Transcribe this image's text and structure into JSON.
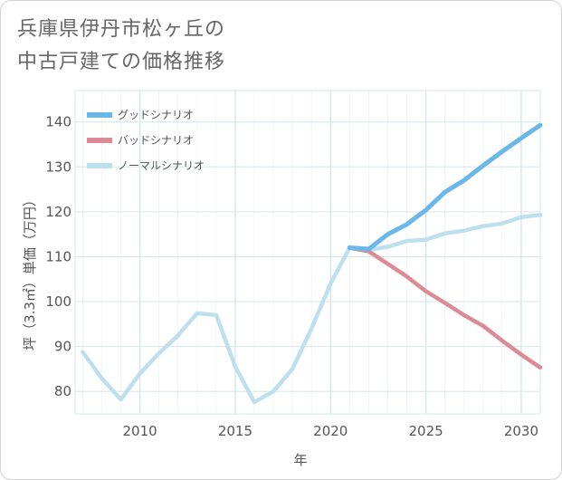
{
  "title_lines": [
    "兵庫県伊丹市松ヶ丘の",
    "中古戸建ての価格推移"
  ],
  "colors": {
    "good": "#6ab7ea",
    "bad": "#dc8a96",
    "normal": "#bde0ee",
    "grid": "#d6e6ee",
    "text": "#555555"
  },
  "chart_data": {
    "type": "line",
    "title": "兵庫県伊丹市松ヶ丘の中古戸建ての価格推移",
    "xlabel": "年",
    "ylabel": "坪（3.3㎡）単価（万円）",
    "xlim": [
      2006.6,
      2031
    ],
    "ylim": [
      75,
      147
    ],
    "xticks": [
      2010,
      2015,
      2020,
      2025,
      2030
    ],
    "yticks": [
      80,
      90,
      100,
      110,
      120,
      130,
      140
    ],
    "grid": true,
    "legend_position": "top-left",
    "series": [
      {
        "name": "グッドシナリオ",
        "key": "good",
        "x": [
          2021,
          2022,
          2023,
          2024,
          2025,
          2026,
          2027,
          2028,
          2029,
          2030,
          2031
        ],
        "values": [
          112,
          111.7,
          115,
          117.2,
          120.4,
          124.4,
          127,
          130.3,
          133.4,
          136.4,
          139.3
        ]
      },
      {
        "name": "バッドシナリオ",
        "key": "bad",
        "x": [
          2021,
          2022,
          2023,
          2024,
          2025,
          2026,
          2027,
          2028,
          2029,
          2030,
          2031
        ],
        "values": [
          112,
          111.2,
          108.4,
          105.6,
          102.3,
          99.7,
          97,
          94.6,
          91.3,
          88.2,
          85.3
        ]
      },
      {
        "name": "ノーマルシナリオ",
        "key": "normal",
        "x": [
          2007,
          2008,
          2009,
          2010,
          2011,
          2012,
          2013,
          2014,
          2015,
          2016,
          2017,
          2018,
          2019,
          2020,
          2021,
          2022,
          2023,
          2024,
          2025,
          2026,
          2027,
          2028,
          2029,
          2030,
          2031
        ],
        "values": [
          88.8,
          82.9,
          78.2,
          84,
          88.5,
          92.5,
          97.4,
          97,
          85.5,
          77.6,
          80,
          85,
          94,
          104,
          112,
          111.5,
          112.2,
          113.5,
          113.8,
          115.2,
          115.8,
          116.8,
          117.4,
          118.8,
          119.3
        ]
      }
    ]
  }
}
